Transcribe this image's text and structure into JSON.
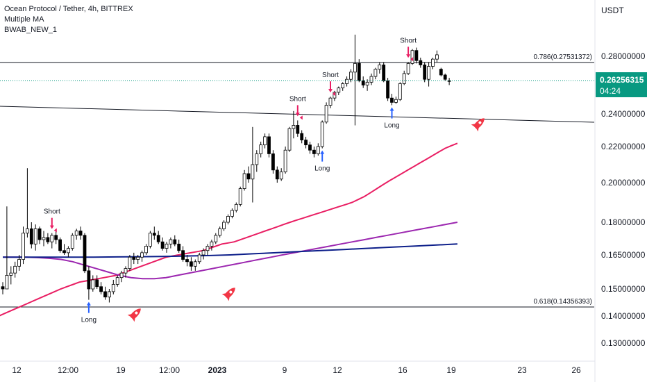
{
  "legend": {
    "title": "Ocean Protocol / Tether, 4h, BITTREX",
    "indicator1": "Multiple MA",
    "indicator2": "BWAB_NEW_1"
  },
  "price_badge": {
    "value": "0.26256315",
    "countdown": "04:24",
    "color": "#089981"
  },
  "colors": {
    "up": "#ffffff",
    "down": "#000000",
    "wick": "#000000",
    "ma_fast": "#e91e63",
    "ma_mid": "#9c27b0",
    "ma_slow": "#0d1f8a",
    "signal_short": "#e91e63",
    "signal_long": "#2962ff"
  },
  "chart_data": {
    "type": "candlestick",
    "currency_label": "USDT",
    "y_ticks": [
      "0.28000000",
      "0.24000000",
      "0.22000000",
      "0.20000000",
      "0.18000000",
      "0.16500000",
      "0.15000000",
      "0.14000000",
      "0.13000000"
    ],
    "x_ticks": [
      "12",
      "12:00",
      "19",
      "12:00",
      "2023",
      "9",
      "12",
      "16",
      "19",
      "23",
      "26"
    ],
    "fib_levels": [
      {
        "label": "0.786(0.27531372)",
        "value": 0.27531372
      },
      {
        "label": "0.618(0.14356393)",
        "value": 0.14356393
      }
    ],
    "trendline": {
      "from": [
        0,
        0.247
      ],
      "to": [
        1,
        0.236
      ]
    },
    "signals": [
      {
        "type": "Short",
        "label": "Short",
        "bar": 12
      },
      {
        "type": "Long",
        "label": "Long",
        "bar": 21
      },
      {
        "type": "Short",
        "label": "Short",
        "bar": 72
      },
      {
        "type": "Long",
        "label": "Long",
        "bar": 78
      },
      {
        "type": "Short",
        "label": "Short",
        "bar": 80
      },
      {
        "type": "Long",
        "label": "Long",
        "bar": 95
      },
      {
        "type": "Short",
        "label": "Short",
        "bar": 99
      }
    ],
    "rocket_markers": [
      {
        "bar": 31
      },
      {
        "bar": 52
      },
      {
        "bar": 110
      }
    ],
    "ohlc": [
      [
        0.151,
        0.153,
        0.148,
        0.15
      ],
      [
        0.15,
        0.188,
        0.15,
        0.156
      ],
      [
        0.156,
        0.16,
        0.152,
        0.157
      ],
      [
        0.157,
        0.162,
        0.155,
        0.16
      ],
      [
        0.16,
        0.165,
        0.158,
        0.163
      ],
      [
        0.163,
        0.178,
        0.161,
        0.175
      ],
      [
        0.175,
        0.208,
        0.173,
        0.177
      ],
      [
        0.177,
        0.18,
        0.168,
        0.17
      ],
      [
        0.17,
        0.179,
        0.167,
        0.177
      ],
      [
        0.177,
        0.178,
        0.17,
        0.172
      ],
      [
        0.172,
        0.176,
        0.169,
        0.173
      ],
      [
        0.173,
        0.175,
        0.17,
        0.171
      ],
      [
        0.171,
        0.175,
        0.168,
        0.174
      ],
      [
        0.174,
        0.176,
        0.17,
        0.172
      ],
      [
        0.172,
        0.173,
        0.166,
        0.167
      ],
      [
        0.167,
        0.17,
        0.165,
        0.166
      ],
      [
        0.166,
        0.169,
        0.164,
        0.168
      ],
      [
        0.168,
        0.175,
        0.167,
        0.174
      ],
      [
        0.174,
        0.177,
        0.172,
        0.176
      ],
      [
        0.176,
        0.178,
        0.172,
        0.174
      ],
      [
        0.174,
        0.175,
        0.157,
        0.158
      ],
      [
        0.158,
        0.16,
        0.146,
        0.15
      ],
      [
        0.15,
        0.156,
        0.149,
        0.154
      ],
      [
        0.154,
        0.156,
        0.15,
        0.151
      ],
      [
        0.151,
        0.153,
        0.148,
        0.149
      ],
      [
        0.149,
        0.151,
        0.146,
        0.147
      ],
      [
        0.147,
        0.15,
        0.145,
        0.149
      ],
      [
        0.149,
        0.154,
        0.148,
        0.152
      ],
      [
        0.152,
        0.156,
        0.151,
        0.155
      ],
      [
        0.155,
        0.158,
        0.153,
        0.157
      ],
      [
        0.157,
        0.16,
        0.155,
        0.159
      ],
      [
        0.159,
        0.165,
        0.158,
        0.164
      ],
      [
        0.164,
        0.166,
        0.161,
        0.163
      ],
      [
        0.163,
        0.165,
        0.161,
        0.164
      ],
      [
        0.164,
        0.167,
        0.162,
        0.166
      ],
      [
        0.166,
        0.17,
        0.165,
        0.169
      ],
      [
        0.169,
        0.176,
        0.168,
        0.175
      ],
      [
        0.175,
        0.178,
        0.172,
        0.174
      ],
      [
        0.174,
        0.176,
        0.17,
        0.171
      ],
      [
        0.171,
        0.173,
        0.167,
        0.168
      ],
      [
        0.168,
        0.171,
        0.166,
        0.17
      ],
      [
        0.17,
        0.173,
        0.168,
        0.172
      ],
      [
        0.172,
        0.174,
        0.169,
        0.17
      ],
      [
        0.17,
        0.172,
        0.166,
        0.167
      ],
      [
        0.167,
        0.169,
        0.162,
        0.163
      ],
      [
        0.163,
        0.165,
        0.16,
        0.162
      ],
      [
        0.162,
        0.164,
        0.158,
        0.16
      ],
      [
        0.16,
        0.163,
        0.158,
        0.162
      ],
      [
        0.162,
        0.166,
        0.161,
        0.165
      ],
      [
        0.165,
        0.168,
        0.163,
        0.167
      ],
      [
        0.167,
        0.17,
        0.165,
        0.169
      ],
      [
        0.169,
        0.172,
        0.167,
        0.171
      ],
      [
        0.171,
        0.175,
        0.17,
        0.174
      ],
      [
        0.174,
        0.178,
        0.173,
        0.177
      ],
      [
        0.177,
        0.181,
        0.176,
        0.18
      ],
      [
        0.18,
        0.184,
        0.179,
        0.183
      ],
      [
        0.183,
        0.187,
        0.182,
        0.186
      ],
      [
        0.186,
        0.19,
        0.185,
        0.189
      ],
      [
        0.189,
        0.198,
        0.188,
        0.197
      ],
      [
        0.197,
        0.207,
        0.196,
        0.205
      ],
      [
        0.205,
        0.209,
        0.2,
        0.202
      ],
      [
        0.202,
        0.232,
        0.19,
        0.21
      ],
      [
        0.21,
        0.218,
        0.206,
        0.216
      ],
      [
        0.216,
        0.223,
        0.214,
        0.221
      ],
      [
        0.221,
        0.228,
        0.219,
        0.226
      ],
      [
        0.226,
        0.228,
        0.214,
        0.216
      ],
      [
        0.216,
        0.218,
        0.205,
        0.207
      ],
      [
        0.207,
        0.209,
        0.2,
        0.202
      ],
      [
        0.202,
        0.208,
        0.201,
        0.206
      ],
      [
        0.206,
        0.22,
        0.205,
        0.218
      ],
      [
        0.218,
        0.232,
        0.217,
        0.231
      ],
      [
        0.231,
        0.242,
        0.225,
        0.233
      ],
      [
        0.233,
        0.236,
        0.226,
        0.228
      ],
      [
        0.228,
        0.23,
        0.222,
        0.224
      ],
      [
        0.224,
        0.226,
        0.219,
        0.221
      ],
      [
        0.221,
        0.223,
        0.216,
        0.218
      ],
      [
        0.218,
        0.22,
        0.214,
        0.216
      ],
      [
        0.216,
        0.222,
        0.215,
        0.22
      ],
      [
        0.22,
        0.236,
        0.219,
        0.235
      ],
      [
        0.235,
        0.248,
        0.234,
        0.246
      ],
      [
        0.246,
        0.252,
        0.244,
        0.251
      ],
      [
        0.251,
        0.256,
        0.249,
        0.255
      ],
      [
        0.255,
        0.259,
        0.253,
        0.258
      ],
      [
        0.258,
        0.262,
        0.256,
        0.261
      ],
      [
        0.261,
        0.266,
        0.259,
        0.264
      ],
      [
        0.264,
        0.271,
        0.262,
        0.269
      ],
      [
        0.269,
        0.295,
        0.233,
        0.275
      ],
      [
        0.275,
        0.278,
        0.262,
        0.263
      ],
      [
        0.263,
        0.266,
        0.258,
        0.26
      ],
      [
        0.26,
        0.264,
        0.256,
        0.262
      ],
      [
        0.262,
        0.268,
        0.26,
        0.266
      ],
      [
        0.266,
        0.272,
        0.264,
        0.271
      ],
      [
        0.271,
        0.276,
        0.268,
        0.274
      ],
      [
        0.274,
        0.276,
        0.262,
        0.263
      ],
      [
        0.263,
        0.265,
        0.249,
        0.251
      ],
      [
        0.251,
        0.254,
        0.246,
        0.248
      ],
      [
        0.248,
        0.252,
        0.247,
        0.25
      ],
      [
        0.25,
        0.262,
        0.249,
        0.261
      ],
      [
        0.261,
        0.27,
        0.26,
        0.268
      ],
      [
        0.268,
        0.276,
        0.267,
        0.275
      ],
      [
        0.275,
        0.285,
        0.274,
        0.284
      ],
      [
        0.284,
        0.286,
        0.275,
        0.277
      ],
      [
        0.277,
        0.279,
        0.272,
        0.274
      ],
      [
        0.274,
        0.276,
        0.262,
        0.264
      ],
      [
        0.264,
        0.276,
        0.259,
        0.273
      ],
      [
        0.273,
        0.279,
        0.271,
        0.278
      ],
      [
        0.278,
        0.284,
        0.276,
        0.281
      ],
      [
        0.271,
        0.272,
        0.266,
        0.267
      ],
      [
        0.267,
        0.268,
        0.263,
        0.264
      ],
      [
        0.263,
        0.265,
        0.26,
        0.2626
      ]
    ],
    "ma_series": [
      {
        "color": "#e91e63",
        "values": [
          0.139,
          0.139,
          0.14,
          0.141,
          0.142,
          0.143,
          0.144,
          0.145,
          0.146,
          0.147,
          0.148,
          0.149,
          0.15,
          0.151,
          0.152,
          0.153,
          0.1535,
          0.154,
          0.1545,
          0.155,
          0.1555,
          0.156,
          0.157,
          0.158,
          0.159,
          0.16,
          0.161,
          0.162,
          0.163,
          0.164,
          0.1645,
          0.165,
          0.1655,
          0.166,
          0.1665,
          0.167,
          0.168,
          0.169,
          0.17,
          0.1705,
          0.171,
          0.172,
          0.173,
          0.174,
          0.175,
          0.176,
          0.177,
          0.178,
          0.179,
          0.18,
          0.181,
          0.182,
          0.183,
          0.184,
          0.185,
          0.186,
          0.187,
          0.188,
          0.189,
          0.19,
          0.1915,
          0.193,
          0.195,
          0.197,
          0.199,
          0.201,
          0.203,
          0.205,
          0.207,
          0.209,
          0.211,
          0.213,
          0.215,
          0.217,
          0.219,
          0.2205,
          0.222
        ]
      },
      {
        "color": "#9c27b0",
        "values": [
          0.164,
          0.164,
          0.164,
          0.1638,
          0.1635,
          0.163,
          0.162,
          0.1605,
          0.159,
          0.1575,
          0.156,
          0.155,
          0.1545,
          0.1545,
          0.155,
          0.156,
          0.157,
          0.158,
          0.159,
          0.16,
          0.161,
          0.162,
          0.163,
          0.164,
          0.165,
          0.166,
          0.167,
          0.168,
          0.169,
          0.17,
          0.171,
          0.172,
          0.173,
          0.174,
          0.175,
          0.176,
          0.177,
          0.178,
          0.179,
          0.18
        ]
      },
      {
        "color": "#0d1f8a",
        "values": [
          0.164,
          0.164,
          0.164,
          0.164,
          0.164,
          0.1641,
          0.1642,
          0.1643,
          0.1645,
          0.1647,
          0.165,
          0.1655,
          0.166,
          0.1665,
          0.167,
          0.1675,
          0.168,
          0.1685,
          0.169,
          0.1695,
          0.17
        ]
      }
    ]
  }
}
